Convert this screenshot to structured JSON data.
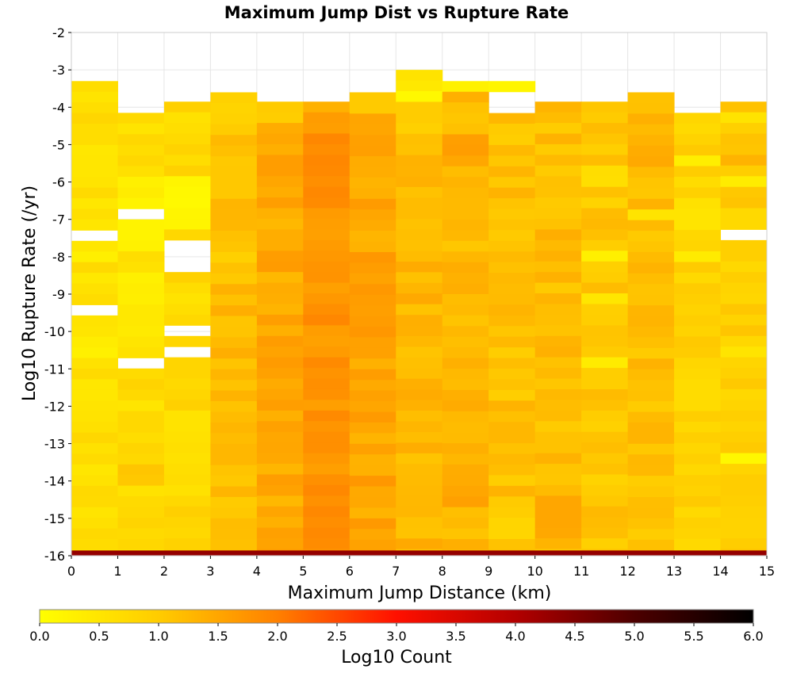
{
  "chart_data": {
    "type": "heatmap",
    "title": "Maximum Jump Dist vs Rupture Rate",
    "xlabel": "Maximum Jump Distance (km)",
    "ylabel": "Log10 Rupture Rate (/yr)",
    "xlim": [
      0,
      15
    ],
    "ylim": [
      -16,
      -2
    ],
    "x_ticks": [
      "0",
      "1",
      "2",
      "3",
      "4",
      "5",
      "6",
      "7",
      "8",
      "9",
      "10",
      "11",
      "12",
      "13",
      "14",
      "15"
    ],
    "y_ticks": [
      "-2",
      "-3",
      "-4",
      "-5",
      "-6",
      "-7",
      "-8",
      "-9",
      "-10",
      "-11",
      "-12",
      "-13",
      "-14",
      "-15",
      "-16"
    ],
    "x_bin_width": 1,
    "y_bin_height": 0.285,
    "grid": true,
    "colorbar": {
      "label": "Log10 Count",
      "min": 0.0,
      "max": 6.0,
      "ticks": [
        "0.0",
        "0.5",
        "1.0",
        "1.5",
        "2.0",
        "2.5",
        "3.0",
        "3.5",
        "4.0",
        "4.5",
        "5.0",
        "5.5",
        "6.0"
      ],
      "stops": [
        {
          "v": 0.0,
          "color": "#ffff00"
        },
        {
          "v": 1.0,
          "color": "#ffcc00"
        },
        {
          "v": 2.0,
          "color": "#ff8000"
        },
        {
          "v": 3.0,
          "color": "#ff1000"
        },
        {
          "v": 4.0,
          "color": "#b30000"
        },
        {
          "v": 5.0,
          "color": "#4d0000"
        },
        {
          "v": 6.0,
          "color": "#000000"
        }
      ]
    },
    "bottom_row": {
      "y_from": -16.0,
      "y_to": -15.86,
      "value": 4.3
    },
    "columns": [
      {
        "x": 0,
        "y_top": -3.3,
        "base": 0.6,
        "gaps": [
          [
            -7.52,
            -7.3
          ],
          [
            -9.5,
            -9.3
          ]
        ],
        "overrides": [
          [
            -7.85,
            -8.1,
            0.25
          ],
          [
            -10.0,
            -10.8,
            0.3
          ],
          [
            -5.3,
            -6.0,
            0.45
          ]
        ]
      },
      {
        "x": 1,
        "y_top": -4.15,
        "base": 0.7,
        "gaps": [
          [
            -6.95,
            -6.75
          ],
          [
            -10.95,
            -10.75
          ]
        ],
        "overrides": [
          [
            -6.0,
            -7.8,
            0.3
          ],
          [
            -8.5,
            -9.3,
            0.3
          ],
          [
            -9.4,
            -10.5,
            0.45
          ],
          [
            -13.5,
            -14.2,
            1.05
          ]
        ]
      },
      {
        "x": 2,
        "y_top": -3.85,
        "base": 0.75,
        "gaps": [
          [
            -8.4,
            -7.6
          ],
          [
            -10.1,
            -9.85
          ],
          [
            -10.75,
            -10.5
          ]
        ],
        "overrides": [
          [
            -5.8,
            -7.2,
            0.15
          ],
          [
            -12.0,
            -13.5,
            0.6
          ]
        ]
      },
      {
        "x": 3,
        "y_top": -3.6,
        "base": 1.2,
        "gaps": [],
        "overrides": [
          [
            -3.6,
            -4.4,
            0.9
          ],
          [
            -7.8,
            -8.2,
            0.85
          ]
        ]
      },
      {
        "x": 4,
        "y_top": -3.85,
        "base": 1.45,
        "gaps": [],
        "overrides": [
          [
            -3.85,
            -4.3,
            1.0
          ]
        ]
      },
      {
        "x": 5,
        "y_top": -3.85,
        "base": 1.75,
        "gaps": [],
        "overrides": [
          [
            -4.6,
            -6.5,
            1.85
          ],
          [
            -14.0,
            -15.8,
            1.85
          ],
          [
            -3.85,
            -4.1,
            1.3
          ]
        ]
      },
      {
        "x": 6,
        "y_top": -3.6,
        "base": 1.5,
        "gaps": [],
        "overrides": [
          [
            -3.6,
            -4.1,
            1.0
          ]
        ]
      },
      {
        "x": 7,
        "y_top": -3.0,
        "base": 1.3,
        "gaps": [],
        "overrides": [
          [
            -3.0,
            -3.55,
            0.5
          ],
          [
            -3.55,
            -3.85,
            0.2
          ],
          [
            -3.85,
            -4.7,
            0.95
          ]
        ]
      },
      {
        "x": 8,
        "y_top": -3.3,
        "base": 1.25,
        "gaps": [],
        "overrides": [
          [
            -3.3,
            -3.6,
            0.2
          ],
          [
            -4.6,
            -5.6,
            1.55
          ],
          [
            -14.2,
            -14.8,
            1.55
          ]
        ]
      },
      {
        "x": 9,
        "y_top": -3.3,
        "base": 1.15,
        "gaps": [
          [
            -4.15,
            -3.6
          ]
        ],
        "overrides": [
          [
            -3.3,
            -3.6,
            0.25
          ],
          [
            -15.0,
            -15.5,
            0.85
          ]
        ]
      },
      {
        "x": 10,
        "y_top": -3.85,
        "base": 1.2,
        "gaps": [],
        "overrides": [
          [
            -14.5,
            -15.4,
            1.45
          ]
        ]
      },
      {
        "x": 11,
        "y_top": -3.85,
        "base": 1.05,
        "gaps": [],
        "overrides": [
          [
            -7.9,
            -8.2,
            0.35
          ],
          [
            -9.0,
            -9.2,
            0.45
          ],
          [
            -10.8,
            -11.1,
            0.4
          ],
          [
            -5.6,
            -6.0,
            0.6
          ]
        ]
      },
      {
        "x": 12,
        "y_top": -3.6,
        "base": 1.15,
        "gaps": [],
        "overrides": [
          [
            -6.8,
            -7.0,
            0.5
          ],
          [
            -5.0,
            -5.5,
            1.4
          ],
          [
            -4.3,
            -4.8,
            1.3
          ]
        ]
      },
      {
        "x": 13,
        "y_top": -4.15,
        "base": 0.85,
        "gaps": [],
        "overrides": [
          [
            -5.3,
            -5.6,
            0.3
          ],
          [
            -7.8,
            -8.2,
            0.45
          ],
          [
            -6.5,
            -7.2,
            0.55
          ]
        ]
      },
      {
        "x": 14,
        "y_top": -3.85,
        "base": 0.95,
        "gaps": [
          [
            -7.55,
            -7.3
          ]
        ],
        "overrides": [
          [
            -4.0,
            -4.3,
            0.5
          ],
          [
            -5.8,
            -6.2,
            0.35
          ],
          [
            -13.3,
            -13.6,
            0.2
          ],
          [
            -10.4,
            -10.7,
            0.55
          ],
          [
            -5.3,
            -5.7,
            1.3
          ]
        ]
      }
    ]
  }
}
